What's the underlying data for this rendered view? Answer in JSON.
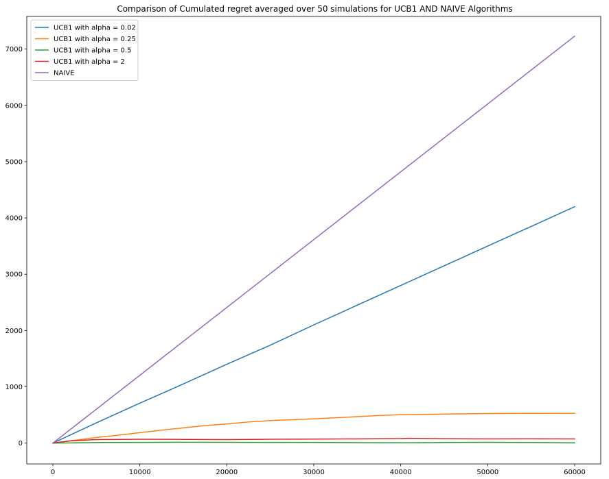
{
  "chart_data": {
    "type": "line",
    "title": "Comparison of Cumulated regret averaged over 50 simulations for UCB1 AND NAIVE Algorithms",
    "xlabel": "",
    "ylabel": "",
    "xlim": [
      -3000,
      63000
    ],
    "ylim": [
      -370,
      7580
    ],
    "xticks": [
      0,
      10000,
      20000,
      30000,
      40000,
      50000,
      60000
    ],
    "yticks": [
      0,
      1000,
      2000,
      3000,
      4000,
      5000,
      6000,
      7000
    ],
    "grid": false,
    "legend_position": "top-left",
    "series": [
      {
        "name": "UCB1 with alpha = 0.02",
        "color": "#1f77b4",
        "x": [
          0,
          5000,
          10000,
          15000,
          20000,
          25000,
          30000,
          35000,
          40000,
          45000,
          50000,
          55000,
          60000
        ],
        "y": [
          0,
          360,
          710,
          1050,
          1400,
          1740,
          2100,
          2450,
          2800,
          3150,
          3500,
          3850,
          4200
        ]
      },
      {
        "name": "UCB1 with alpha = 0.25",
        "color": "#ff7f0e",
        "x": [
          0,
          2500,
          5000,
          7500,
          10000,
          12500,
          15000,
          17500,
          20000,
          22500,
          25000,
          27500,
          30000,
          32500,
          35000,
          37500,
          40000,
          45000,
          50000,
          55000,
          60000
        ],
        "y": [
          0,
          50,
          100,
          140,
          185,
          230,
          270,
          310,
          340,
          375,
          400,
          415,
          430,
          450,
          470,
          490,
          505,
          515,
          525,
          528,
          530
        ]
      },
      {
        "name": "UCB1 with alpha = 0.5",
        "color": "#2ca02c",
        "x": [
          0,
          5000,
          10000,
          15000,
          20000,
          25000,
          30000,
          35000,
          40000,
          45000,
          50000,
          55000,
          60000
        ],
        "y": [
          0,
          10,
          12,
          15,
          14,
          12,
          12,
          8,
          6,
          10,
          14,
          10,
          5
        ]
      },
      {
        "name": "UCB1 with alpha = 2",
        "color": "#d62728",
        "x": [
          0,
          2000,
          5000,
          10000,
          15000,
          20000,
          25000,
          30000,
          35000,
          40000,
          41000,
          45000,
          50000,
          55000,
          60000
        ],
        "y": [
          0,
          40,
          62,
          68,
          66,
          62,
          68,
          72,
          75,
          80,
          85,
          78,
          75,
          76,
          74
        ]
      },
      {
        "name": "NAIVE",
        "color": "#9467bd",
        "x": [
          0,
          60000
        ],
        "y": [
          0,
          7230
        ]
      }
    ]
  }
}
